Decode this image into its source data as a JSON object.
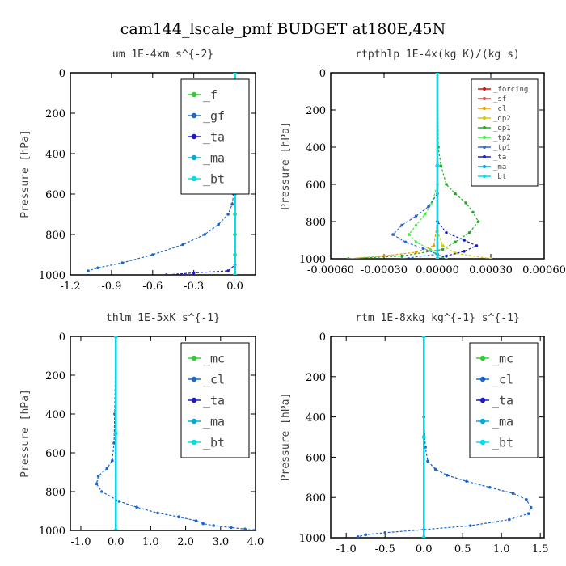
{
  "figure": {
    "title": "cam144_lscale_pmf  BUDGET at180E,45N"
  },
  "chart_data": [
    {
      "type": "line",
      "title": "um   1E-4xm  s^{-2}",
      "xlabel": "",
      "ylabel": "Pressure [hPa]",
      "xlim": [
        -1.2,
        0.15
      ],
      "ylim": [
        1000,
        0
      ],
      "xticks": [
        "-1.2",
        "-0.9",
        "-0.6",
        "-0.3",
        "0.0"
      ],
      "xtick_values": [
        -1.2,
        -0.9,
        -0.6,
        -0.3,
        0.0
      ],
      "yticks": [
        "0",
        "200",
        "400",
        "600",
        "800",
        "1000"
      ],
      "ytick_values": [
        0,
        200,
        400,
        600,
        800,
        1000
      ],
      "legend_position": "top-right",
      "legend_size": "large",
      "series": [
        {
          "name": "_f",
          "color": "#33cc33",
          "x": [
            0.0,
            0.0,
            0.0,
            0.0,
            0.0,
            0.0,
            0.0,
            0.0,
            0.0,
            0.0,
            0.0
          ],
          "y": [
            0,
            100,
            200,
            300,
            400,
            500,
            600,
            700,
            800,
            900,
            1000
          ]
        },
        {
          "name": "_gf",
          "color": "#1a66cc",
          "x": [
            0.0,
            0.0,
            0.0,
            0.0,
            -0.01,
            -0.02,
            -0.05,
            -0.12,
            -0.22,
            -0.38,
            -0.6,
            -0.82,
            -1.0,
            -1.07
          ],
          "y": [
            0,
            200,
            400,
            550,
            600,
            650,
            700,
            750,
            800,
            850,
            900,
            940,
            965,
            980
          ]
        },
        {
          "name": "_ta",
          "color": "#1a1acc",
          "x": [
            0.0,
            0.0,
            0.0,
            -0.05,
            -0.3,
            -0.5
          ],
          "y": [
            0,
            500,
            950,
            980,
            990,
            1000
          ]
        },
        {
          "name": "_ma",
          "color": "#00aadd",
          "x": [
            0.0,
            0.0,
            0.0
          ],
          "y": [
            0,
            500,
            1000
          ]
        },
        {
          "name": "_bt",
          "color": "#00ddee",
          "x": [
            0.0,
            0.0,
            0.0
          ],
          "y": [
            0,
            500,
            1000
          ]
        }
      ]
    },
    {
      "type": "line",
      "title": "rtpthlp   1E-4x(kg K)/(kg s)",
      "xlabel": "",
      "ylabel": "Pressure [hPa]",
      "xlim": [
        -0.0006,
        0.0006
      ],
      "ylim": [
        1000,
        0
      ],
      "xticks": [
        "-0.00060",
        "-0.00030",
        "0.00000",
        "0.00030",
        "0.00060"
      ],
      "xtick_values": [
        -0.0006,
        -0.0003,
        0.0,
        0.0003,
        0.0006
      ],
      "yticks": [
        "0",
        "200",
        "400",
        "600",
        "800",
        "1000"
      ],
      "ytick_values": [
        0,
        200,
        400,
        600,
        800,
        1000
      ],
      "legend_position": "top-right",
      "legend_size": "small",
      "series": [
        {
          "name": "_forcing",
          "color": "#cc1111",
          "x": [
            0.0,
            0.0,
            0.0
          ],
          "y": [
            0,
            500,
            1000
          ]
        },
        {
          "name": "_sf",
          "color": "#ee4444",
          "x": [
            0.0,
            0.0,
            0.0
          ],
          "y": [
            0,
            500,
            1000
          ]
        },
        {
          "name": "_cl",
          "color": "#ee9900",
          "x": [
            0.0,
            0.0,
            -2e-05,
            -0.00012,
            -0.0003,
            -0.0005
          ],
          "y": [
            0,
            800,
            930,
            965,
            985,
            1000
          ]
        },
        {
          "name": "_dp2",
          "color": "#cccc00",
          "x": [
            0.0,
            0.0,
            3e-05,
            0.0001,
            0.0003
          ],
          "y": [
            0,
            850,
            930,
            970,
            1000
          ]
        },
        {
          "name": "_dp1",
          "color": "#22aa22",
          "x": [
            0.0,
            5e-06,
            2e-05,
            5e-05,
            0.0001,
            0.00016,
            0.0002,
            0.00023,
            0.00018,
            0.0001,
            3e-05,
            -0.0002,
            -0.0005
          ],
          "y": [
            0,
            400,
            500,
            600,
            650,
            700,
            750,
            800,
            860,
            910,
            950,
            985,
            1000
          ]
        },
        {
          "name": "_tp2",
          "color": "#44ee44",
          "x": [
            0.0,
            0.0,
            -3e-05,
            -7e-05,
            -0.00012,
            -0.00016,
            -0.00012,
            -4e-05,
            0.0,
            5e-05
          ],
          "y": [
            0,
            600,
            700,
            760,
            820,
            870,
            910,
            950,
            975,
            1000
          ]
        },
        {
          "name": "_tp1",
          "color": "#3366cc",
          "x": [
            0.0,
            0.0,
            -5e-05,
            -0.00012,
            -0.0002,
            -0.00025,
            -0.00018,
            -8e-05,
            0.0,
            -0.0002
          ],
          "y": [
            0,
            650,
            720,
            770,
            820,
            870,
            910,
            945,
            975,
            1000
          ]
        },
        {
          "name": "_ta",
          "color": "#1a1acc",
          "x": [
            0.0,
            0.0,
            5e-05,
            0.00015,
            0.00022,
            0.00015,
            5e-05,
            0.0
          ],
          "y": [
            0,
            800,
            860,
            900,
            930,
            960,
            985,
            1000
          ]
        },
        {
          "name": "_ma",
          "color": "#00aadd",
          "x": [
            0.0,
            0.0,
            0.0
          ],
          "y": [
            0,
            500,
            1000
          ]
        },
        {
          "name": "_bt",
          "color": "#00ddee",
          "x": [
            0.0,
            0.0,
            0.0
          ],
          "y": [
            0,
            500,
            1000
          ]
        }
      ]
    },
    {
      "type": "line",
      "title": "thlm   1E-5xK  s^{-1}",
      "xlabel": "",
      "ylabel": "Pressure [hPa]",
      "xlim": [
        -1.3,
        4.0
      ],
      "ylim": [
        1000,
        0
      ],
      "xticks": [
        "-1.0",
        "0.0",
        "1.0",
        "2.0",
        "3.0",
        "4.0"
      ],
      "xtick_values": [
        -1.0,
        0.0,
        1.0,
        2.0,
        3.0,
        4.0
      ],
      "yticks": [
        "0",
        "200",
        "400",
        "600",
        "800",
        "1000"
      ],
      "ytick_values": [
        0,
        200,
        400,
        600,
        800,
        1000
      ],
      "legend_position": "top-right",
      "legend_size": "large",
      "series": [
        {
          "name": "_mc",
          "color": "#33cc33",
          "x": [
            0.0,
            0.0,
            0.0
          ],
          "y": [
            0,
            500,
            1000
          ]
        },
        {
          "name": "_cl",
          "color": "#1a66cc",
          "x": [
            0.0,
            -0.03,
            -0.05,
            -0.1,
            -0.25,
            -0.5,
            -0.55,
            -0.4,
            0.1,
            0.6,
            1.2,
            1.8,
            2.3,
            2.5,
            2.8,
            3.3,
            3.7,
            3.95
          ],
          "y": [
            0,
            400,
            550,
            640,
            680,
            720,
            760,
            800,
            850,
            880,
            910,
            930,
            950,
            965,
            975,
            985,
            993,
            1000
          ]
        },
        {
          "name": "_ta",
          "color": "#1a1acc",
          "x": [
            0.0,
            0.0,
            0.0
          ],
          "y": [
            0,
            500,
            1000
          ]
        },
        {
          "name": "_ma",
          "color": "#00aadd",
          "x": [
            0.0,
            0.0,
            0.0
          ],
          "y": [
            0,
            500,
            1000
          ]
        },
        {
          "name": "_bt",
          "color": "#00ddee",
          "x": [
            0.0,
            0.0,
            0.0
          ],
          "y": [
            0,
            500,
            1000
          ]
        }
      ]
    },
    {
      "type": "line",
      "title": "rtm   1E-8xkg  kg^{-1}  s^{-1}",
      "xlabel": "",
      "ylabel": "Pressure [hPa]",
      "xlim": [
        -1.2,
        1.55
      ],
      "ylim": [
        1000,
        0
      ],
      "xticks": [
        "-1.0",
        "-0.5",
        "0.0",
        "0.5",
        "1.0",
        "1.5"
      ],
      "xtick_values": [
        -1.0,
        -0.5,
        0.0,
        0.5,
        1.0,
        1.5
      ],
      "yticks": [
        "0",
        "200",
        "400",
        "600",
        "800",
        "1000"
      ],
      "ytick_values": [
        0,
        200,
        400,
        600,
        800,
        1000
      ],
      "legend_position": "top-right",
      "legend_size": "large",
      "series": [
        {
          "name": "_mc",
          "color": "#33cc33",
          "x": [
            0.0,
            0.0,
            0.0
          ],
          "y": [
            0,
            500,
            1000
          ]
        },
        {
          "name": "_cl",
          "color": "#1a66cc",
          "x": [
            0.0,
            0.0,
            0.02,
            0.05,
            0.15,
            0.3,
            0.55,
            0.85,
            1.15,
            1.32,
            1.38,
            1.35,
            1.1,
            0.6,
            0.0,
            -0.5,
            -0.75,
            -0.85
          ],
          "y": [
            0,
            400,
            550,
            620,
            660,
            690,
            720,
            750,
            780,
            810,
            850,
            880,
            910,
            940,
            960,
            975,
            985,
            995
          ]
        },
        {
          "name": "_ta",
          "color": "#1a1acc",
          "x": [
            0.0,
            0.0,
            0.0
          ],
          "y": [
            0,
            500,
            1000
          ]
        },
        {
          "name": "_ma",
          "color": "#00aadd",
          "x": [
            0.0,
            0.0,
            0.0
          ],
          "y": [
            0,
            500,
            1000
          ]
        },
        {
          "name": "_bt",
          "color": "#00ddee",
          "x": [
            0.0,
            0.0,
            0.0
          ],
          "y": [
            0,
            500,
            1000
          ]
        }
      ]
    }
  ]
}
